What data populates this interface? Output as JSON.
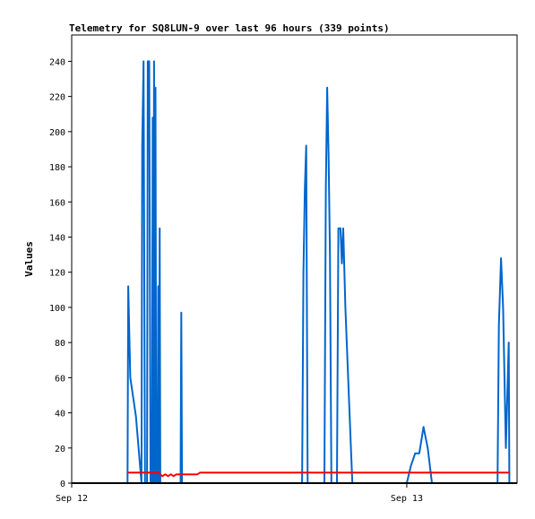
{
  "chart_data": {
    "type": "line",
    "title": "Telemetry for SQ8LUN-9 over last 96 hours (339 points)",
    "xlabel": "",
    "ylabel": "Values",
    "x_range_hours": [
      0,
      31.9
    ],
    "ylim": [
      0,
      255
    ],
    "y_ticks": [
      0,
      20,
      40,
      60,
      80,
      100,
      120,
      140,
      160,
      180,
      200,
      220,
      240
    ],
    "x_ticks": [
      {
        "label": "Sep 12",
        "hour": 0
      },
      {
        "label": "Sep 13",
        "hour": 24
      }
    ],
    "grid": false,
    "legend": "none",
    "series": [
      {
        "color": "#0066cc",
        "points": [
          [
            4.0,
            0
          ],
          [
            4.05,
            112
          ],
          [
            4.2,
            60
          ],
          [
            4.6,
            38
          ],
          [
            5.0,
            0
          ],
          [
            5.05,
            192
          ],
          [
            5.15,
            240
          ],
          [
            5.25,
            0
          ],
          [
            5.4,
            0
          ],
          [
            5.45,
            240
          ],
          [
            5.55,
            240
          ],
          [
            5.65,
            0
          ],
          [
            5.75,
            0
          ],
          [
            5.8,
            208
          ],
          [
            5.85,
            0
          ],
          [
            5.9,
            240
          ],
          [
            5.95,
            0
          ],
          [
            6.0,
            225
          ],
          [
            6.05,
            0
          ],
          [
            6.15,
            0
          ],
          [
            6.2,
            112
          ],
          [
            6.25,
            0
          ],
          [
            6.3,
            145
          ],
          [
            6.35,
            0
          ],
          [
            6.4,
            0
          ],
          [
            7.8,
            0
          ],
          [
            7.85,
            97
          ],
          [
            7.9,
            0
          ],
          [
            16.5,
            0
          ],
          [
            16.6,
            120
          ],
          [
            16.7,
            168
          ],
          [
            16.8,
            192
          ],
          [
            16.9,
            0
          ],
          [
            18.1,
            0
          ],
          [
            18.2,
            168
          ],
          [
            18.3,
            225
          ],
          [
            18.4,
            185
          ],
          [
            18.5,
            130
          ],
          [
            18.6,
            0
          ],
          [
            19.0,
            0
          ],
          [
            19.1,
            145
          ],
          [
            19.25,
            145
          ],
          [
            19.35,
            125
          ],
          [
            19.45,
            145
          ],
          [
            19.6,
            100
          ],
          [
            19.8,
            60
          ],
          [
            20.0,
            20
          ],
          [
            20.1,
            0
          ],
          [
            24.0,
            0
          ],
          [
            24.3,
            10
          ],
          [
            24.6,
            17
          ],
          [
            24.9,
            17
          ],
          [
            25.2,
            32
          ],
          [
            25.5,
            20
          ],
          [
            25.8,
            0
          ],
          [
            30.5,
            0
          ],
          [
            30.6,
            90
          ],
          [
            30.75,
            128
          ],
          [
            30.9,
            100
          ],
          [
            31.1,
            20
          ],
          [
            31.3,
            80
          ],
          [
            31.35,
            0
          ]
        ]
      },
      {
        "color": "#ff0000",
        "points": [
          [
            4.0,
            6
          ],
          [
            5.5,
            6
          ],
          [
            6.2,
            6
          ],
          [
            6.5,
            4
          ],
          [
            6.7,
            5
          ],
          [
            6.9,
            4
          ],
          [
            7.1,
            5
          ],
          [
            7.3,
            4
          ],
          [
            7.5,
            5
          ],
          [
            9.0,
            5
          ],
          [
            9.2,
            6
          ],
          [
            16.5,
            6
          ],
          [
            24.0,
            6
          ],
          [
            31.4,
            6
          ]
        ]
      },
      {
        "color": "#000000",
        "points": [
          [
            0,
            0
          ],
          [
            31.9,
            0
          ]
        ]
      }
    ]
  }
}
